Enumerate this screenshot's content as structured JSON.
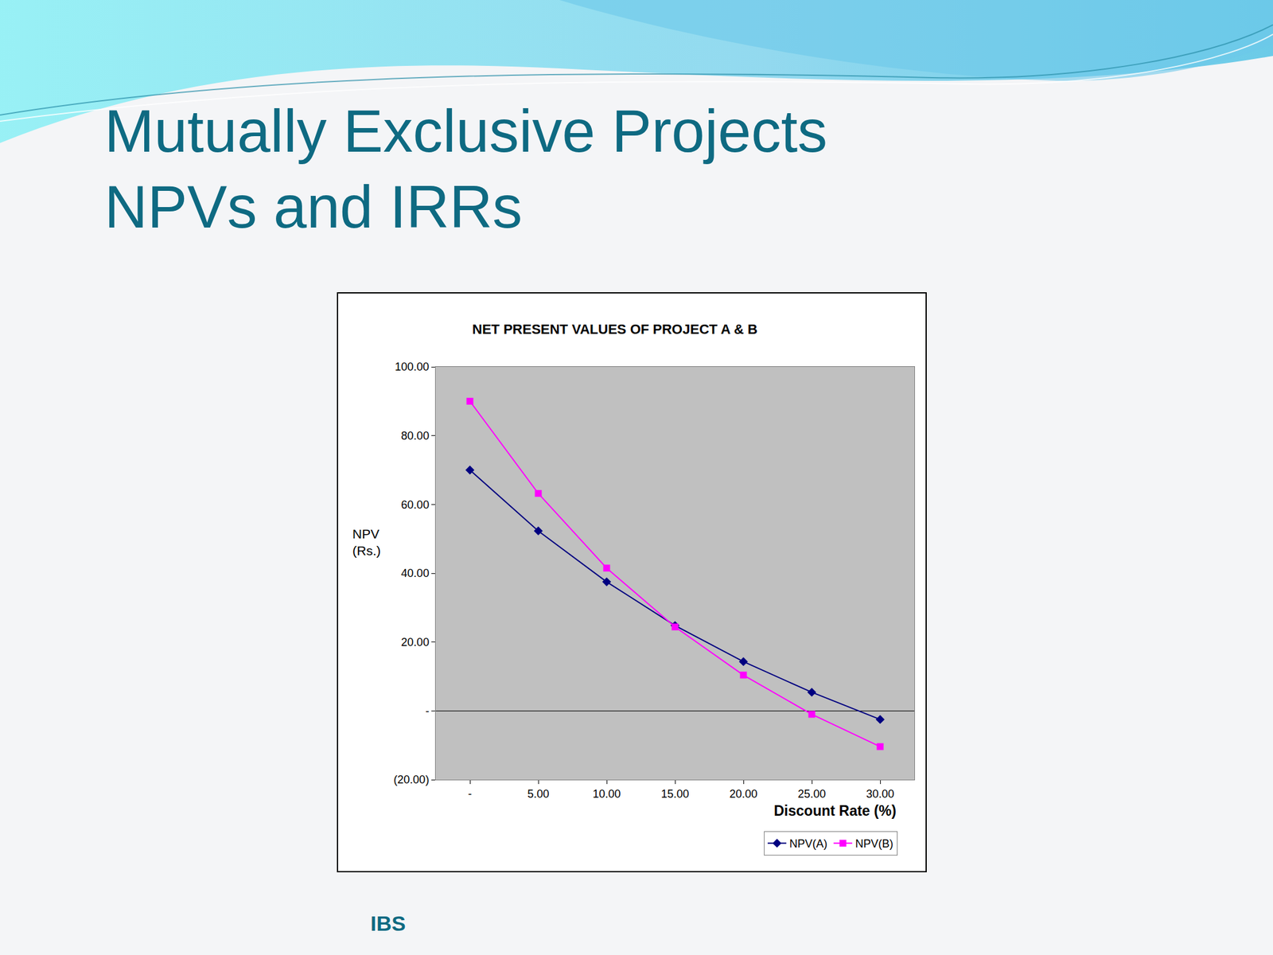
{
  "slide": {
    "title_lines": [
      "Mutually Exclusive Projects",
      "NPVs and IRRs"
    ],
    "footer": "IBS"
  },
  "chart_data": {
    "type": "line",
    "title": "NET PRESENT VALUES OF PROJECT A & B",
    "x_label": "Discount Rate (%)",
    "y_label": "NPV (Rs.)",
    "categories": [
      "-",
      "5.00",
      "10.00",
      "15.00",
      "20.00",
      "25.00",
      "30.00"
    ],
    "series": [
      {
        "name": "NPV(A)",
        "color": "#000080",
        "marker": "diamond",
        "line_style": "solid",
        "values": [
          70,
          52.3,
          37.5,
          24.8,
          14.3,
          5.4,
          -2.5
        ]
      },
      {
        "name": "NPV(B)",
        "color": "#ff00ff",
        "marker": "square",
        "line_style": "solid",
        "values": [
          90,
          63.2,
          41.5,
          24.4,
          10.4,
          -1.0,
          -10.4
        ]
      }
    ],
    "ylim": [
      -20,
      100
    ],
    "yticks": [
      {
        "value": -20,
        "label": "(20.00)"
      },
      {
        "value": 0,
        "label": "-"
      },
      {
        "value": 20,
        "label": "20.00"
      },
      {
        "value": 40,
        "label": "40.00"
      },
      {
        "value": 60,
        "label": "60.00"
      },
      {
        "value": 80,
        "label": "80.00"
      },
      {
        "value": 100,
        "label": "100.00"
      }
    ],
    "grid": false,
    "legend": "bottom right"
  }
}
